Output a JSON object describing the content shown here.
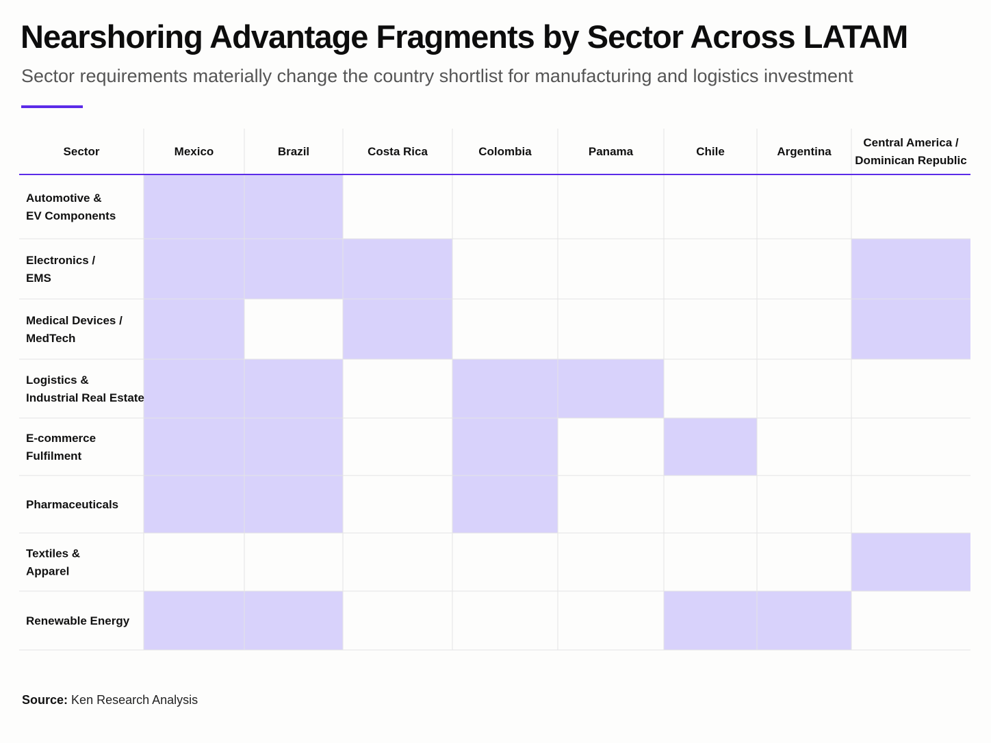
{
  "header": {
    "title": "Nearshoring Advantage Fragments by Sector Across LATAM",
    "subtitle": "Sector requirements materially change the country shortlist for manufacturing and logistics investment"
  },
  "colors": {
    "accent": "#5b2be8",
    "highlight": "#d8d2fb",
    "grid": "#e4e4e4",
    "background": "#fdfdfc"
  },
  "chart_data": {
    "type": "heatmap",
    "row_header": "Sector",
    "columns": [
      [
        "Mexico"
      ],
      [
        "Brazil"
      ],
      [
        "Costa Rica"
      ],
      [
        "Colombia"
      ],
      [
        "Panama"
      ],
      [
        "Chile"
      ],
      [
        "Argentina"
      ],
      [
        "Central America /",
        "Dominican Republic"
      ]
    ],
    "rows": [
      [
        "Automotive &",
        "EV Components"
      ],
      [
        "Electronics /",
        "EMS"
      ],
      [
        "Medical Devices /",
        "MedTech"
      ],
      [
        "Logistics &",
        "Industrial Real Estate"
      ],
      [
        "E-commerce",
        "Fulfilment"
      ],
      [
        "Pharmaceuticals"
      ],
      [
        "Textiles &",
        "Apparel"
      ],
      [
        "Renewable Energy"
      ]
    ],
    "values": [
      [
        1,
        1,
        0,
        0,
        0,
        0,
        0,
        0
      ],
      [
        1,
        1,
        1,
        0,
        0,
        0,
        0,
        1
      ],
      [
        1,
        0,
        1,
        0,
        0,
        0,
        0,
        1
      ],
      [
        1,
        1,
        0,
        1,
        1,
        0,
        0,
        0
      ],
      [
        1,
        1,
        0,
        1,
        0,
        1,
        0,
        0
      ],
      [
        1,
        1,
        0,
        1,
        0,
        0,
        0,
        0
      ],
      [
        0,
        0,
        0,
        0,
        0,
        0,
        0,
        1
      ],
      [
        1,
        1,
        0,
        0,
        0,
        1,
        1,
        0
      ]
    ]
  },
  "footer": {
    "source_label": "Source:",
    "source_text": "Ken Research Analysis"
  }
}
